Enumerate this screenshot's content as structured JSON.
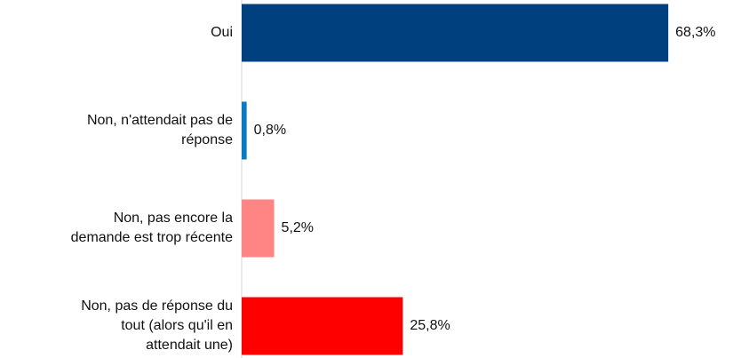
{
  "chart_data": {
    "type": "bar",
    "orientation": "horizontal",
    "categories": [
      "Oui",
      "Non, n'attendait pas de\nréponse",
      "Non, pas encore la\ndemande est trop récente",
      "Non, pas de réponse du\ntout (alors qu'il en\nattendait une)"
    ],
    "values": [
      68.3,
      0.8,
      5.2,
      25.8
    ],
    "value_labels": [
      "68,3%",
      "0,8%",
      "5,2%",
      "25,8%"
    ],
    "colors": [
      "#00407f",
      "#0a7bc1",
      "#ff8585",
      "#ff0000"
    ]
  }
}
